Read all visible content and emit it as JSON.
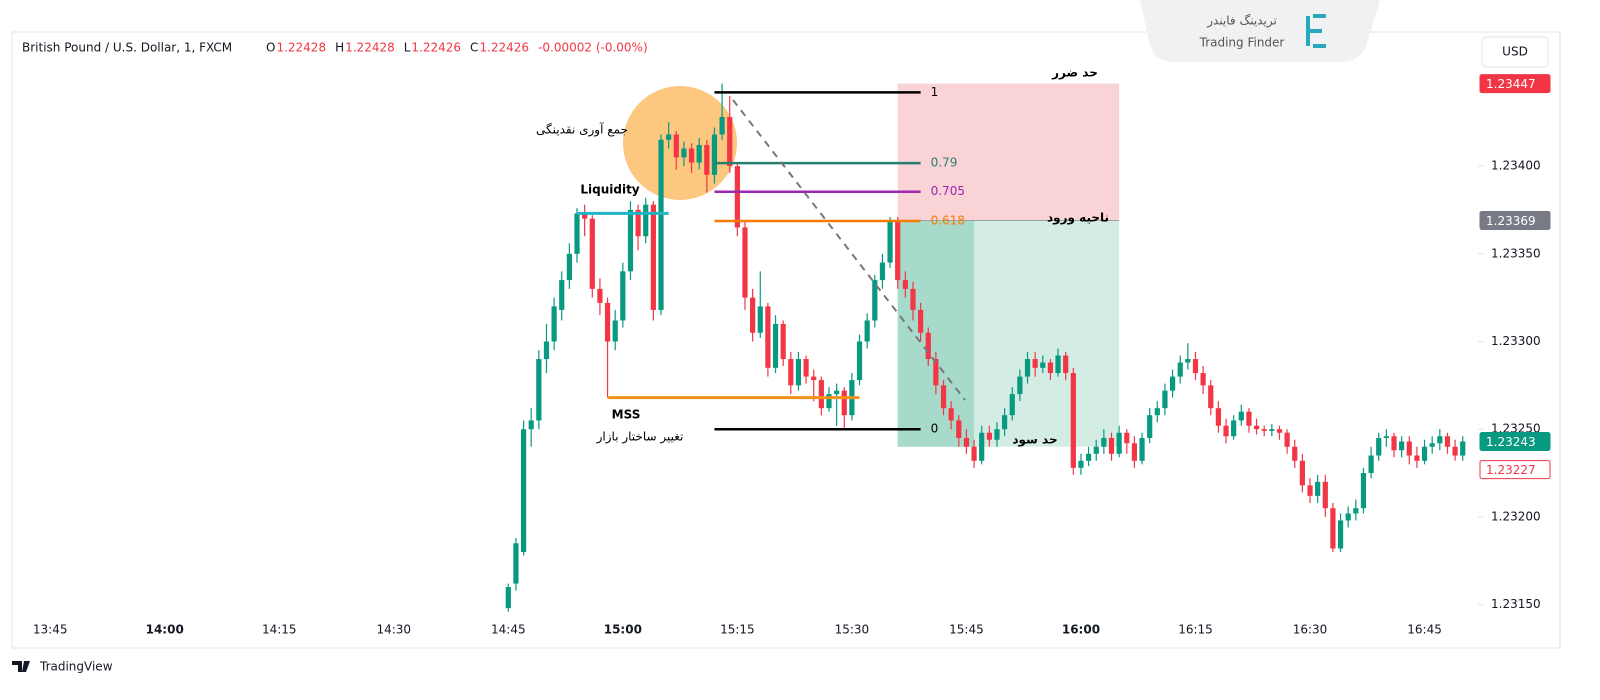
{
  "header": {
    "symbol": "British Pound / U.S. Dollar, 1, FXCM",
    "ohlc": [
      {
        "label": "O",
        "value": "1.22428"
      },
      {
        "label": "H",
        "value": "1.22428"
      },
      {
        "label": "L",
        "value": "1.22426"
      },
      {
        "label": "C",
        "value": "1.22426"
      }
    ],
    "change": "-0.00002 (-0.00%)"
  },
  "watermark": {
    "name_fa": "تریدینگ فایندر",
    "name_en": "Trading Finder"
  },
  "currency_button": "USD",
  "footer": "TradingView",
  "annotations": {
    "stop_loss": "حد ضرر",
    "entry_zone": "ناحیه ورود",
    "take_profit": "حد سود",
    "liquidity_grab": "جمع آوری نقدینگی",
    "liquidity": "Liquidity",
    "mss": "MSS",
    "mss_fa": "تغییر ساختار بازار"
  },
  "chart_data": {
    "type": "candlestick",
    "up_color": "#089981",
    "down_color": "#f23645",
    "xlim": [
      "13:40",
      "16:52"
    ],
    "ylim": [
      1.23127,
      1.23473
    ],
    "xticks": [
      "13:45",
      "14:00",
      "14:15",
      "14:30",
      "14:45",
      "15:00",
      "15:15",
      "15:30",
      "15:45",
      "16:00",
      "16:15",
      "16:30",
      "16:45"
    ],
    "yticks": [
      {
        "value": 1.2315,
        "label": "1.23150"
      },
      {
        "value": 1.232,
        "label": "1.23200"
      },
      {
        "value": 1.2325,
        "label": "1.23250"
      },
      {
        "value": 1.233,
        "label": "1.23300"
      },
      {
        "value": 1.2335,
        "label": "1.23350"
      },
      {
        "value": 1.234,
        "label": "1.23400"
      }
    ],
    "x": [
      "14:45",
      "14:46",
      "14:47",
      "14:48",
      "14:49",
      "14:50",
      "14:51",
      "14:52",
      "14:53",
      "14:54",
      "14:55",
      "14:56",
      "14:57",
      "14:58",
      "14:59",
      "15:00",
      "15:01",
      "15:02",
      "15:03",
      "15:04",
      "15:05",
      "15:06",
      "15:07",
      "15:08",
      "15:09",
      "15:10",
      "15:11",
      "15:12",
      "15:13",
      "15:14",
      "15:15",
      "15:16",
      "15:17",
      "15:18",
      "15:19",
      "15:20",
      "15:21",
      "15:22",
      "15:23",
      "15:24",
      "15:25",
      "15:26",
      "15:27",
      "15:28",
      "15:29",
      "15:30",
      "15:31",
      "15:32",
      "15:33",
      "15:34",
      "15:35",
      "15:36",
      "15:37",
      "15:38",
      "15:39",
      "15:40",
      "15:41",
      "15:42",
      "15:43",
      "15:44",
      "15:45",
      "15:46",
      "15:47",
      "15:48",
      "15:49",
      "15:50",
      "15:51",
      "15:52",
      "15:53",
      "15:54",
      "15:55",
      "15:56",
      "15:57",
      "15:58",
      "15:59",
      "16:00",
      "16:01",
      "16:02",
      "16:03",
      "16:04",
      "16:05",
      "16:06",
      "16:07",
      "16:08",
      "16:09",
      "16:10",
      "16:11",
      "16:12",
      "16:13",
      "16:14",
      "16:15",
      "16:16",
      "16:17",
      "16:18",
      "16:19",
      "16:20",
      "16:21",
      "16:22",
      "16:23",
      "16:24",
      "16:25",
      "16:26",
      "16:27",
      "16:28",
      "16:29",
      "16:30",
      "16:31",
      "16:32",
      "16:33",
      "16:34",
      "16:35",
      "16:36",
      "16:37",
      "16:38",
      "16:39",
      "16:40",
      "16:41",
      "16:42",
      "16:43",
      "16:44",
      "16:45",
      "16:46",
      "16:47",
      "16:48",
      "16:49",
      "16:50"
    ],
    "open": [
      1.23148,
      1.23162,
      1.2318,
      1.2325,
      1.23255,
      1.2329,
      1.233,
      1.23318,
      1.23335,
      1.2335,
      1.23373,
      1.2337,
      1.2333,
      1.23322,
      1.233,
      1.23312,
      1.2334,
      1.23375,
      1.2336,
      1.23378,
      1.23318,
      1.23415,
      1.23418,
      1.23405,
      1.2341,
      1.23402,
      1.23412,
      1.23395,
      1.23418,
      1.23428,
      1.234,
      1.23365,
      1.23325,
      1.23305,
      1.2332,
      1.23285,
      1.2331,
      1.2329,
      1.23275,
      1.2329,
      1.2328,
      1.23278,
      1.23262,
      1.2327,
      1.23272,
      1.23258,
      1.23278,
      1.233,
      1.23312,
      1.23335,
      1.23345,
      1.23369,
      1.23335,
      1.2333,
      1.23318,
      1.23305,
      1.2329,
      1.23275,
      1.23262,
      1.23255,
      1.23245,
      1.2324,
      1.23232,
      1.23248,
      1.23244,
      1.2325,
      1.23258,
      1.2327,
      1.2328,
      1.2329,
      1.23285,
      1.23288,
      1.23282,
      1.23292,
      1.23282,
      1.23228,
      1.23232,
      1.23236,
      1.2324,
      1.23245,
      1.23236,
      1.23248,
      1.23242,
      1.23232,
      1.23245,
      1.23258,
      1.23262,
      1.23272,
      1.2328,
      1.23288,
      1.2329,
      1.23282,
      1.23275,
      1.23262,
      1.23252,
      1.23246,
      1.23255,
      1.2326,
      1.23252,
      1.2325,
      1.23249,
      1.2325,
      1.23248,
      1.2324,
      1.23232,
      1.23218,
      1.23212,
      1.2322,
      1.23205,
      1.23182,
      1.23198,
      1.23202,
      1.23205,
      1.23225,
      1.23235,
      1.23245,
      1.23246,
      1.23238,
      1.23243,
      1.23235,
      1.23232,
      1.2324,
      1.23242,
      1.23246,
      1.2324,
      1.23235
    ],
    "high": [
      1.23162,
      1.23188,
      1.23255,
      1.23262,
      1.23295,
      1.2331,
      1.23325,
      1.2334,
      1.23356,
      1.23376,
      1.23378,
      1.23372,
      1.23336,
      1.23325,
      1.23318,
      1.23345,
      1.2338,
      1.23378,
      1.23382,
      1.2338,
      1.23418,
      1.23425,
      1.2342,
      1.23414,
      1.23413,
      1.23416,
      1.23415,
      1.23422,
      1.23447,
      1.2344,
      1.23402,
      1.23368,
      1.2333,
      1.2334,
      1.23322,
      1.23315,
      1.23312,
      1.23294,
      1.23294,
      1.23292,
      1.23284,
      1.2328,
      1.23274,
      1.23276,
      1.23274,
      1.23282,
      1.23304,
      1.23316,
      1.23338,
      1.2335,
      1.23371,
      1.23371,
      1.2334,
      1.23334,
      1.23322,
      1.23308,
      1.23294,
      1.23278,
      1.23266,
      1.23258,
      1.2325,
      1.23244,
      1.23252,
      1.23252,
      1.23254,
      1.23262,
      1.23274,
      1.23284,
      1.23294,
      1.23294,
      1.23292,
      1.2329,
      1.23296,
      1.23294,
      1.23285,
      1.23236,
      1.2324,
      1.23244,
      1.2325,
      1.23248,
      1.23252,
      1.2325,
      1.23246,
      1.23248,
      1.23262,
      1.23266,
      1.23276,
      1.23284,
      1.23292,
      1.23299,
      1.23294,
      1.23286,
      1.23278,
      1.23266,
      1.23256,
      1.23258,
      1.23264,
      1.23262,
      1.23256,
      1.23252,
      1.23253,
      1.23252,
      1.2325,
      1.23244,
      1.23236,
      1.23222,
      1.23224,
      1.23224,
      1.23208,
      1.23202,
      1.23206,
      1.2321,
      1.23228,
      1.2324,
      1.23248,
      1.2325,
      1.23248,
      1.23246,
      1.23246,
      1.2324,
      1.23244,
      1.23246,
      1.2325,
      1.23248,
      1.23244,
      1.23246
    ],
    "low": [
      1.23146,
      1.23158,
      1.23178,
      1.2324,
      1.2325,
      1.23282,
      1.23295,
      1.23312,
      1.2333,
      1.23345,
      1.2336,
      1.23325,
      1.23315,
      1.23268,
      1.23295,
      1.23308,
      1.23335,
      1.23352,
      1.23356,
      1.23312,
      1.23315,
      1.2341,
      1.23398,
      1.234,
      1.23396,
      1.23398,
      1.23385,
      1.2339,
      1.23415,
      1.23396,
      1.2336,
      1.23318,
      1.233,
      1.23302,
      1.2328,
      1.23282,
      1.23286,
      1.2327,
      1.23272,
      1.23276,
      1.23266,
      1.23258,
      1.2326,
      1.23252,
      1.2325,
      1.23255,
      1.23275,
      1.23296,
      1.23308,
      1.2333,
      1.23342,
      1.2333,
      1.23325,
      1.23312,
      1.233,
      1.23286,
      1.2327,
      1.23258,
      1.2325,
      1.2324,
      1.23236,
      1.23228,
      1.2323,
      1.2324,
      1.2324,
      1.23246,
      1.23255,
      1.23266,
      1.23276,
      1.2328,
      1.23282,
      1.23278,
      1.2328,
      1.23278,
      1.23224,
      1.23224,
      1.23229,
      1.23232,
      1.23236,
      1.23232,
      1.23234,
      1.23236,
      1.23228,
      1.2323,
      1.23242,
      1.23254,
      1.23258,
      1.23268,
      1.23276,
      1.23284,
      1.23278,
      1.2327,
      1.23258,
      1.23248,
      1.23242,
      1.23244,
      1.23252,
      1.23248,
      1.23247,
      1.23246,
      1.23246,
      1.23244,
      1.23236,
      1.23228,
      1.23214,
      1.23208,
      1.23208,
      1.232,
      1.2318,
      1.2318,
      1.23194,
      1.23198,
      1.23202,
      1.23222,
      1.23232,
      1.2324,
      1.23234,
      1.23234,
      1.2323,
      1.23228,
      1.2323,
      1.23236,
      1.23238,
      1.23236,
      1.23232,
      1.23232
    ],
    "close": [
      1.2316,
      1.23185,
      1.2325,
      1.23255,
      1.2329,
      1.233,
      1.2332,
      1.23335,
      1.2335,
      1.23373,
      1.2337,
      1.2333,
      1.23322,
      1.233,
      1.23312,
      1.2334,
      1.23375,
      1.2336,
      1.23378,
      1.23318,
      1.23415,
      1.23418,
      1.23405,
      1.2341,
      1.23402,
      1.23412,
      1.23395,
      1.23418,
      1.23428,
      1.234,
      1.23365,
      1.23325,
      1.23305,
      1.2332,
      1.23285,
      1.2331,
      1.2329,
      1.23275,
      1.2329,
      1.2328,
      1.23278,
      1.23262,
      1.2327,
      1.23272,
      1.23258,
      1.23278,
      1.233,
      1.23312,
      1.23335,
      1.23345,
      1.23369,
      1.23335,
      1.2333,
      1.23318,
      1.23305,
      1.2329,
      1.23275,
      1.23262,
      1.23255,
      1.23245,
      1.2324,
      1.23232,
      1.23248,
      1.23244,
      1.2325,
      1.23258,
      1.2327,
      1.2328,
      1.2329,
      1.23285,
      1.23288,
      1.23282,
      1.23292,
      1.23282,
      1.23228,
      1.23232,
      1.23236,
      1.2324,
      1.23245,
      1.23236,
      1.23248,
      1.23242,
      1.23232,
      1.23245,
      1.23258,
      1.23262,
      1.23272,
      1.2328,
      1.23288,
      1.2329,
      1.23282,
      1.23275,
      1.23262,
      1.23252,
      1.23246,
      1.23255,
      1.2326,
      1.23252,
      1.2325,
      1.23249,
      1.2325,
      1.23248,
      1.2324,
      1.23232,
      1.23218,
      1.23212,
      1.2322,
      1.23205,
      1.23182,
      1.23198,
      1.23202,
      1.23205,
      1.23225,
      1.23235,
      1.23245,
      1.23246,
      1.23238,
      1.23243,
      1.23235,
      1.23232,
      1.2324,
      1.23242,
      1.23246,
      1.2324,
      1.23235,
      1.23243
    ],
    "liquidity_line": {
      "price": 1.23373,
      "start": "14:54",
      "end": "15:06",
      "color": "#22b5c5"
    },
    "mss_line": {
      "price": 1.23268,
      "start": "14:58",
      "end": "15:31",
      "color": "#f5921e"
    },
    "fib": {
      "price_0": 1.2325,
      "price_1": 1.23442,
      "start": "15:12",
      "end": "15:39",
      "levels": [
        {
          "value": 1,
          "color": "#000000"
        },
        {
          "value": 0.79,
          "color": "#26806f"
        },
        {
          "value": 0.705,
          "color": "#9c27b0"
        },
        {
          "value": 0.618,
          "color": "#f57c00"
        },
        {
          "value": 0,
          "color": "#000000"
        }
      ]
    },
    "position": {
      "entry": 1.23369,
      "stop": 1.23447,
      "target": 1.2324,
      "start": "15:36",
      "end": "16:05",
      "filled_until": "15:46"
    },
    "price_tags": [
      {
        "value": 1.23447,
        "color": "#f23645",
        "outline": false
      },
      {
        "value": 1.23369,
        "color": "#787b86",
        "outline": false
      },
      {
        "value": 1.23243,
        "color": "#089981",
        "outline": false
      },
      {
        "value": 1.23227,
        "color": "#f23645",
        "outline": true
      }
    ]
  }
}
